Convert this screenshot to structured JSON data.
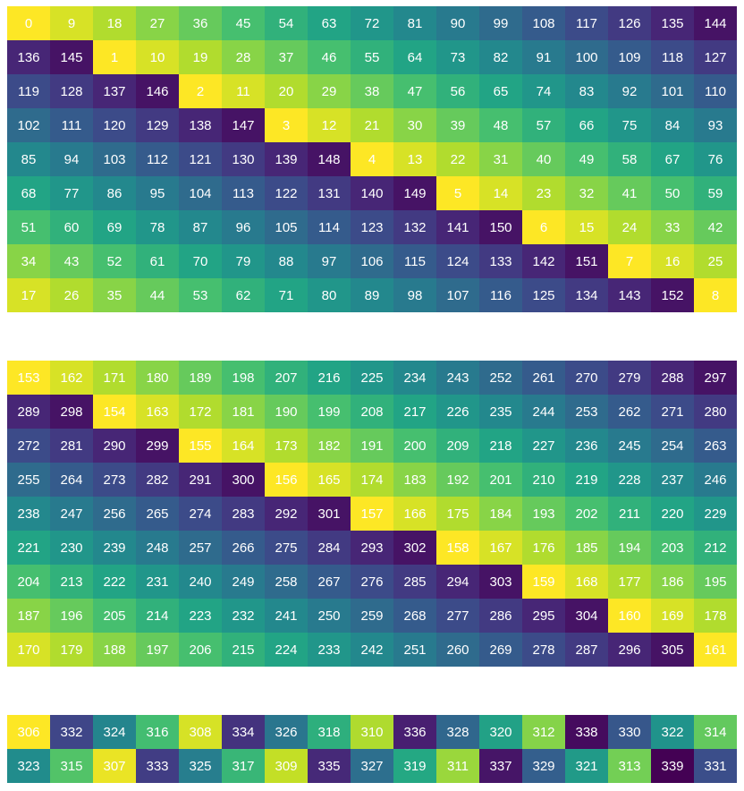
{
  "chart_data": {
    "type": "heatmap",
    "title": "",
    "xlabel": "",
    "ylabel": "",
    "grid": false,
    "legend": "none",
    "colormap": "viridis",
    "value_range": [
      0,
      340
    ],
    "panels": [
      {
        "name": "panel-1",
        "rows": [
          [
            0,
            9,
            18,
            27,
            36,
            45,
            54,
            63,
            72,
            81,
            90,
            99,
            108,
            117,
            126,
            135,
            144
          ],
          [
            136,
            145,
            1,
            10,
            19,
            28,
            37,
            46,
            55,
            64,
            73,
            82,
            91,
            100,
            109,
            118,
            127
          ],
          [
            119,
            128,
            137,
            146,
            2,
            11,
            20,
            29,
            38,
            47,
            56,
            65,
            74,
            83,
            92,
            101,
            110
          ],
          [
            102,
            111,
            120,
            129,
            138,
            147,
            3,
            12,
            21,
            30,
            39,
            48,
            57,
            66,
            75,
            84,
            93
          ],
          [
            85,
            94,
            103,
            112,
            121,
            130,
            139,
            148,
            4,
            13,
            22,
            31,
            40,
            49,
            58,
            67,
            76
          ],
          [
            68,
            77,
            86,
            95,
            104,
            113,
            122,
            131,
            140,
            149,
            5,
            14,
            23,
            32,
            41,
            50,
            59
          ],
          [
            51,
            60,
            69,
            78,
            87,
            96,
            105,
            114,
            123,
            132,
            141,
            150,
            6,
            15,
            24,
            33,
            42
          ],
          [
            34,
            43,
            52,
            61,
            70,
            79,
            88,
            97,
            106,
            115,
            124,
            133,
            142,
            151,
            7,
            16,
            25
          ],
          [
            17,
            26,
            35,
            44,
            53,
            62,
            71,
            80,
            89,
            98,
            107,
            116,
            125,
            134,
            143,
            152,
            8
          ]
        ]
      },
      {
        "name": "panel-2",
        "rows": [
          [
            153,
            162,
            171,
            180,
            189,
            198,
            207,
            216,
            225,
            234,
            243,
            252,
            261,
            270,
            279,
            288,
            297
          ],
          [
            289,
            298,
            154,
            163,
            172,
            181,
            190,
            199,
            208,
            217,
            226,
            235,
            244,
            253,
            262,
            271,
            280
          ],
          [
            272,
            281,
            290,
            299,
            155,
            164,
            173,
            182,
            191,
            200,
            209,
            218,
            227,
            236,
            245,
            254,
            263
          ],
          [
            255,
            264,
            273,
            282,
            291,
            300,
            156,
            165,
            174,
            183,
            192,
            201,
            210,
            219,
            228,
            237,
            246
          ],
          [
            238,
            247,
            256,
            265,
            274,
            283,
            292,
            301,
            157,
            166,
            175,
            184,
            193,
            202,
            211,
            220,
            229
          ],
          [
            221,
            230,
            239,
            248,
            257,
            266,
            275,
            284,
            293,
            302,
            158,
            167,
            176,
            185,
            194,
            203,
            212
          ],
          [
            204,
            213,
            222,
            231,
            240,
            249,
            258,
            267,
            276,
            285,
            294,
            303,
            159,
            168,
            177,
            186,
            195
          ],
          [
            187,
            196,
            205,
            214,
            223,
            232,
            241,
            250,
            259,
            268,
            277,
            286,
            295,
            304,
            160,
            169,
            178
          ],
          [
            170,
            179,
            188,
            197,
            206,
            215,
            224,
            233,
            242,
            251,
            260,
            269,
            278,
            287,
            296,
            305,
            161
          ]
        ]
      },
      {
        "name": "panel-3",
        "rows": [
          [
            306,
            332,
            324,
            316,
            308,
            334,
            326,
            318,
            310,
            336,
            328,
            320,
            312,
            338,
            330,
            322,
            314
          ],
          [
            323,
            315,
            307,
            333,
            325,
            317,
            309,
            335,
            327,
            319,
            311,
            337,
            329,
            321,
            313,
            339,
            331
          ]
        ]
      }
    ]
  }
}
